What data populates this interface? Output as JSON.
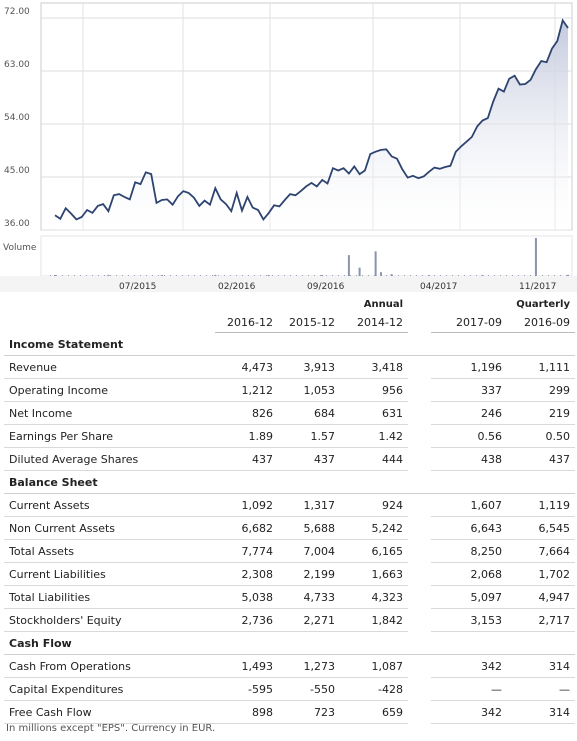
{
  "chart_data": [
    {
      "type": "area",
      "y_ticks": [
        "72.00",
        "63.00",
        "54.00",
        "45.00",
        "36.00"
      ],
      "ylim": [
        36,
        72
      ],
      "x_labels": [
        "07/2015",
        "02/2016",
        "09/2016",
        "04/2017",
        "11/2017"
      ],
      "grid": true,
      "line_color": "#2e4470",
      "fill_color": "#c3c9dd",
      "points": [
        [
          0,
          38.5
        ],
        [
          1,
          37.9
        ],
        [
          2,
          39.7
        ],
        [
          3,
          38.8
        ],
        [
          4,
          37.8
        ],
        [
          5,
          38.2
        ],
        [
          6,
          39.4
        ],
        [
          7,
          38.9
        ],
        [
          8,
          40.1
        ],
        [
          9,
          40.4
        ],
        [
          10,
          39.2
        ],
        [
          11,
          41.9
        ],
        [
          12,
          42.1
        ],
        [
          13,
          41.6
        ],
        [
          14,
          41.2
        ],
        [
          15,
          44.1
        ],
        [
          16,
          43.8
        ],
        [
          17,
          45.8
        ],
        [
          18,
          45.5
        ],
        [
          19,
          40.6
        ],
        [
          20,
          41.1
        ],
        [
          21,
          41.2
        ],
        [
          22,
          40.3
        ],
        [
          23,
          41.7
        ],
        [
          24,
          42.6
        ],
        [
          25,
          42.3
        ],
        [
          26,
          41.5
        ],
        [
          27,
          40.1
        ],
        [
          28,
          41.0
        ],
        [
          29,
          40.3
        ],
        [
          30,
          43.1
        ],
        [
          31,
          41.2
        ],
        [
          32,
          40.4
        ],
        [
          33,
          39.2
        ],
        [
          34,
          42.3
        ],
        [
          35,
          39.3
        ],
        [
          36,
          41.6
        ],
        [
          37,
          39.8
        ],
        [
          38,
          39.4
        ],
        [
          39,
          37.8
        ],
        [
          40,
          38.9
        ],
        [
          41,
          40.2
        ],
        [
          42,
          40.0
        ],
        [
          43,
          41.1
        ],
        [
          44,
          42.1
        ],
        [
          45,
          41.9
        ],
        [
          46,
          42.6
        ],
        [
          47,
          43.4
        ],
        [
          48,
          44.0
        ],
        [
          49,
          43.4
        ],
        [
          50,
          44.5
        ],
        [
          51,
          43.9
        ],
        [
          52,
          46.5
        ],
        [
          53,
          46.1
        ],
        [
          54,
          46.5
        ],
        [
          55,
          45.6
        ],
        [
          56,
          46.8
        ],
        [
          57,
          45.5
        ],
        [
          58,
          46.1
        ],
        [
          59,
          48.9
        ],
        [
          60,
          49.3
        ],
        [
          61,
          49.6
        ],
        [
          62,
          49.7
        ],
        [
          63,
          48.5
        ],
        [
          64,
          48.1
        ],
        [
          65,
          46.3
        ],
        [
          66,
          44.9
        ],
        [
          67,
          45.2
        ],
        [
          68,
          44.8
        ],
        [
          69,
          45.1
        ],
        [
          70,
          45.9
        ],
        [
          71,
          46.6
        ],
        [
          72,
          46.4
        ],
        [
          73,
          46.7
        ],
        [
          74,
          46.9
        ],
        [
          75,
          49.3
        ],
        [
          76,
          50.2
        ],
        [
          77,
          51.0
        ],
        [
          78,
          51.8
        ],
        [
          79,
          53.6
        ],
        [
          80,
          54.6
        ],
        [
          81,
          55.0
        ],
        [
          82,
          57.8
        ],
        [
          83,
          60.0
        ],
        [
          84,
          59.5
        ],
        [
          85,
          61.7
        ],
        [
          86,
          62.2
        ],
        [
          87,
          60.7
        ],
        [
          88,
          60.8
        ],
        [
          89,
          61.5
        ],
        [
          90,
          63.3
        ],
        [
          91,
          64.7
        ],
        [
          92,
          64.5
        ],
        [
          93,
          66.8
        ],
        [
          94,
          68.1
        ],
        [
          95,
          71.6
        ],
        [
          96,
          70.3
        ]
      ]
    },
    {
      "type": "bar",
      "label": "Volume",
      "bar_color": "#8a94ad",
      "points": [
        [
          0,
          0.02
        ],
        [
          10,
          0.03
        ],
        [
          20,
          0.02
        ],
        [
          30,
          0.03
        ],
        [
          40,
          0.02
        ],
        [
          50,
          0.02
        ],
        [
          55,
          0.55
        ],
        [
          57,
          0.22
        ],
        [
          60,
          0.65
        ],
        [
          61,
          0.1
        ],
        [
          63,
          0.05
        ],
        [
          70,
          0.02
        ],
        [
          80,
          0.03
        ],
        [
          90,
          1.0
        ],
        [
          96,
          0.03
        ]
      ]
    }
  ],
  "table": {
    "period_headers": {
      "annual": "Annual",
      "quarterly": "Quarterly"
    },
    "date_headers": [
      "2016-12",
      "2015-12",
      "2014-12",
      "2017-09",
      "2016-09"
    ],
    "rows": [
      {
        "kind": "section",
        "label": "Income Statement"
      },
      {
        "kind": "row",
        "label": "Revenue",
        "values": [
          "4,473",
          "3,913",
          "3,418",
          "1,196",
          "1,111"
        ]
      },
      {
        "kind": "row",
        "label": "Operating Income",
        "values": [
          "1,212",
          "1,053",
          "956",
          "337",
          "299"
        ]
      },
      {
        "kind": "row",
        "label": "Net Income",
        "values": [
          "826",
          "684",
          "631",
          "246",
          "219"
        ]
      },
      {
        "kind": "row",
        "label": "Earnings Per Share",
        "values": [
          "1.89",
          "1.57",
          "1.42",
          "0.56",
          "0.50"
        ]
      },
      {
        "kind": "row",
        "label": "Diluted Average Shares",
        "values": [
          "437",
          "437",
          "444",
          "438",
          "437"
        ]
      },
      {
        "kind": "section",
        "label": "Balance Sheet"
      },
      {
        "kind": "row",
        "label": "Current Assets",
        "values": [
          "1,092",
          "1,317",
          "924",
          "1,607",
          "1,119"
        ]
      },
      {
        "kind": "row",
        "label": "Non Current Assets",
        "values": [
          "6,682",
          "5,688",
          "5,242",
          "6,643",
          "6,545"
        ]
      },
      {
        "kind": "row",
        "label": "Total Assets",
        "values": [
          "7,774",
          "7,004",
          "6,165",
          "8,250",
          "7,664"
        ]
      },
      {
        "kind": "row",
        "label": "Current Liabilities",
        "values": [
          "2,308",
          "2,199",
          "1,663",
          "2,068",
          "1,702"
        ]
      },
      {
        "kind": "row",
        "label": "Total Liabilities",
        "values": [
          "5,038",
          "4,733",
          "4,323",
          "5,097",
          "4,947"
        ]
      },
      {
        "kind": "row",
        "label": "Stockholders' Equity",
        "values": [
          "2,736",
          "2,271",
          "1,842",
          "3,153",
          "2,717"
        ]
      },
      {
        "kind": "section",
        "label": "Cash Flow"
      },
      {
        "kind": "row",
        "label": "Cash From Operations",
        "values": [
          "1,493",
          "1,273",
          "1,087",
          "342",
          "314"
        ]
      },
      {
        "kind": "row",
        "label": "Capital Expenditures",
        "values": [
          "-595",
          "-550",
          "-428",
          "—",
          "—"
        ]
      },
      {
        "kind": "row",
        "label": "Free Cash Flow",
        "values": [
          "898",
          "723",
          "659",
          "342",
          "314"
        ]
      }
    ],
    "footnote": "In millions except \"EPS\". Currency in EUR."
  }
}
